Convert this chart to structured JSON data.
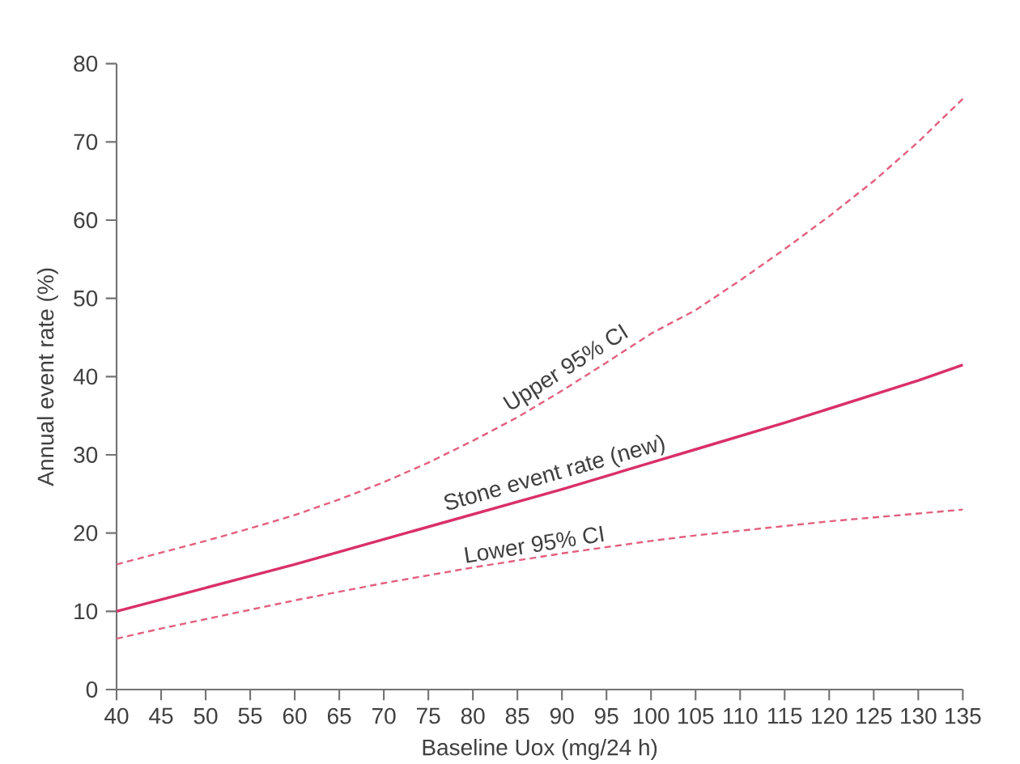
{
  "chart_data": {
    "type": "line",
    "xlabel": "Baseline Uox (mg/24 h)",
    "ylabel": "Annual event rate (%)",
    "x": [
      40,
      45,
      50,
      55,
      60,
      65,
      70,
      75,
      80,
      85,
      90,
      95,
      100,
      105,
      110,
      115,
      120,
      125,
      130,
      135
    ],
    "series": [
      {
        "name": "Upper 95% CI",
        "color": "#e2607f",
        "line_style": "dashed",
        "values": [
          16,
          17.5,
          19,
          20.6,
          22.3,
          24.3,
          26.5,
          29,
          31.8,
          34.8,
          38.2,
          41.8,
          45.5,
          48.5,
          52.3,
          56.3,
          60.5,
          65,
          70,
          75.5
        ]
      },
      {
        "name": "Stone event rate (new)",
        "color": "#d9306a",
        "line_style": "solid",
        "values": [
          10,
          11.5,
          13,
          14.5,
          16,
          17.6,
          19.2,
          20.8,
          22.4,
          24,
          25.6,
          27.3,
          29,
          30.7,
          32.4,
          34.1,
          35.9,
          37.7,
          39.5,
          41.5
        ]
      },
      {
        "name": "Lower 95% CI",
        "color": "#e2607f",
        "line_style": "dashed",
        "values": [
          6.5,
          7.8,
          9,
          10.2,
          11.4,
          12.5,
          13.6,
          14.6,
          15.6,
          16.5,
          17.4,
          18.2,
          19,
          19.7,
          20.3,
          20.9,
          21.5,
          22,
          22.5,
          23
        ]
      }
    ],
    "xlim": [
      40,
      135
    ],
    "xticks": [
      40,
      45,
      50,
      55,
      60,
      65,
      70,
      75,
      80,
      85,
      90,
      95,
      100,
      105,
      110,
      115,
      120,
      125,
      130,
      135
    ],
    "ylim": [
      0,
      80
    ],
    "yticks": [
      0,
      10,
      20,
      30,
      40,
      50,
      60,
      70,
      80
    ],
    "grid": false,
    "legend": false,
    "marker": "none"
  }
}
